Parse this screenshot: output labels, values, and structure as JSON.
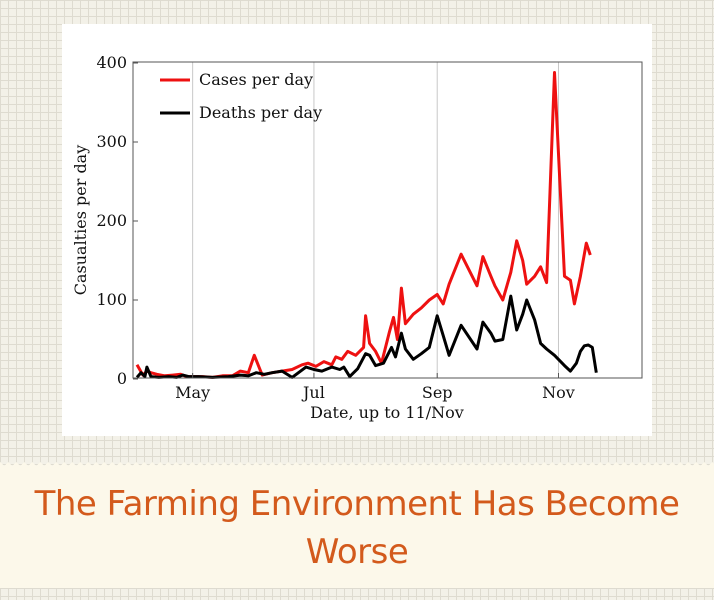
{
  "caption": "The Farming Environment Has Become Worse",
  "colors": {
    "cases": "#ee1111",
    "deaths": "#000000",
    "caption": "#d35a1c"
  },
  "chart_data": {
    "type": "line",
    "xlabel": "Date, up to 11/Nov",
    "ylabel": "Casualties per day",
    "ylim": [
      0,
      400
    ],
    "yticks": [
      0,
      100,
      200,
      300,
      400
    ],
    "xlim": [
      -30,
      226
    ],
    "xticks": [
      {
        "label": "May",
        "day": 0
      },
      {
        "label": "Jul",
        "day": 61
      },
      {
        "label": "Sep",
        "day": 123
      },
      {
        "label": "Nov",
        "day": 184
      }
    ],
    "grid": "vertical",
    "legend_position": "top-left",
    "series": [
      {
        "name": "Cases per day",
        "color": "#ee1111",
        "points": [
          [
            -28,
            18
          ],
          [
            -25,
            5
          ],
          [
            -23,
            10
          ],
          [
            -21,
            8
          ],
          [
            -18,
            6
          ],
          [
            -14,
            4
          ],
          [
            -10,
            5
          ],
          [
            -6,
            6
          ],
          [
            -3,
            3
          ],
          [
            0,
            3
          ],
          [
            5,
            3
          ],
          [
            10,
            2
          ],
          [
            15,
            4
          ],
          [
            20,
            4
          ],
          [
            24,
            10
          ],
          [
            28,
            8
          ],
          [
            31,
            30
          ],
          [
            35,
            5
          ],
          [
            40,
            8
          ],
          [
            45,
            10
          ],
          [
            50,
            12
          ],
          [
            55,
            18
          ],
          [
            58,
            20
          ],
          [
            62,
            16
          ],
          [
            66,
            22
          ],
          [
            70,
            18
          ],
          [
            72,
            28
          ],
          [
            75,
            25
          ],
          [
            78,
            35
          ],
          [
            82,
            30
          ],
          [
            86,
            40
          ],
          [
            87,
            80
          ],
          [
            89,
            45
          ],
          [
            92,
            35
          ],
          [
            95,
            20
          ],
          [
            99,
            60
          ],
          [
            101,
            78
          ],
          [
            103,
            50
          ],
          [
            105,
            115
          ],
          [
            107,
            70
          ],
          [
            111,
            82
          ],
          [
            115,
            90
          ],
          [
            119,
            100
          ],
          [
            123,
            107
          ],
          [
            126,
            95
          ],
          [
            129,
            120
          ],
          [
            135,
            158
          ],
          [
            143,
            118
          ],
          [
            146,
            155
          ],
          [
            150,
            130
          ],
          [
            152,
            118
          ],
          [
            156,
            100
          ],
          [
            160,
            135
          ],
          [
            163,
            175
          ],
          [
            166,
            150
          ],
          [
            168,
            120
          ],
          [
            172,
            130
          ],
          [
            175,
            142
          ],
          [
            178,
            122
          ],
          [
            182,
            388
          ],
          [
            187,
            130
          ],
          [
            190,
            125
          ],
          [
            192,
            95
          ],
          [
            195,
            130
          ],
          [
            198,
            172
          ],
          [
            200,
            157
          ]
        ]
      },
      {
        "name": "Deaths per day",
        "color": "#000000",
        "points": [
          [
            -28,
            2
          ],
          [
            -26,
            8
          ],
          [
            -24,
            3
          ],
          [
            -23,
            15
          ],
          [
            -21,
            3
          ],
          [
            -17,
            2
          ],
          [
            -12,
            3
          ],
          [
            -8,
            2
          ],
          [
            -5,
            5
          ],
          [
            -2,
            3
          ],
          [
            3,
            3
          ],
          [
            10,
            2
          ],
          [
            18,
            3
          ],
          [
            24,
            5
          ],
          [
            28,
            4
          ],
          [
            32,
            8
          ],
          [
            36,
            6
          ],
          [
            40,
            8
          ],
          [
            45,
            10
          ],
          [
            50,
            2
          ],
          [
            57,
            15
          ],
          [
            61,
            12
          ],
          [
            65,
            10
          ],
          [
            70,
            15
          ],
          [
            74,
            12
          ],
          [
            76,
            15
          ],
          [
            79,
            3
          ],
          [
            83,
            13
          ],
          [
            87,
            32
          ],
          [
            89,
            30
          ],
          [
            92,
            17
          ],
          [
            96,
            20
          ],
          [
            100,
            40
          ],
          [
            102,
            28
          ],
          [
            105,
            58
          ],
          [
            107,
            38
          ],
          [
            111,
            25
          ],
          [
            115,
            32
          ],
          [
            119,
            40
          ],
          [
            123,
            80
          ],
          [
            126,
            55
          ],
          [
            129,
            30
          ],
          [
            135,
            68
          ],
          [
            143,
            38
          ],
          [
            146,
            72
          ],
          [
            150,
            58
          ],
          [
            152,
            48
          ],
          [
            156,
            50
          ],
          [
            160,
            105
          ],
          [
            163,
            62
          ],
          [
            166,
            82
          ],
          [
            168,
            100
          ],
          [
            172,
            75
          ],
          [
            175,
            45
          ],
          [
            178,
            38
          ],
          [
            182,
            30
          ],
          [
            187,
            17
          ],
          [
            190,
            10
          ],
          [
            193,
            20
          ],
          [
            195,
            35
          ],
          [
            197,
            42
          ],
          [
            199,
            43
          ],
          [
            201,
            40
          ],
          [
            203,
            8
          ]
        ]
      }
    ]
  }
}
